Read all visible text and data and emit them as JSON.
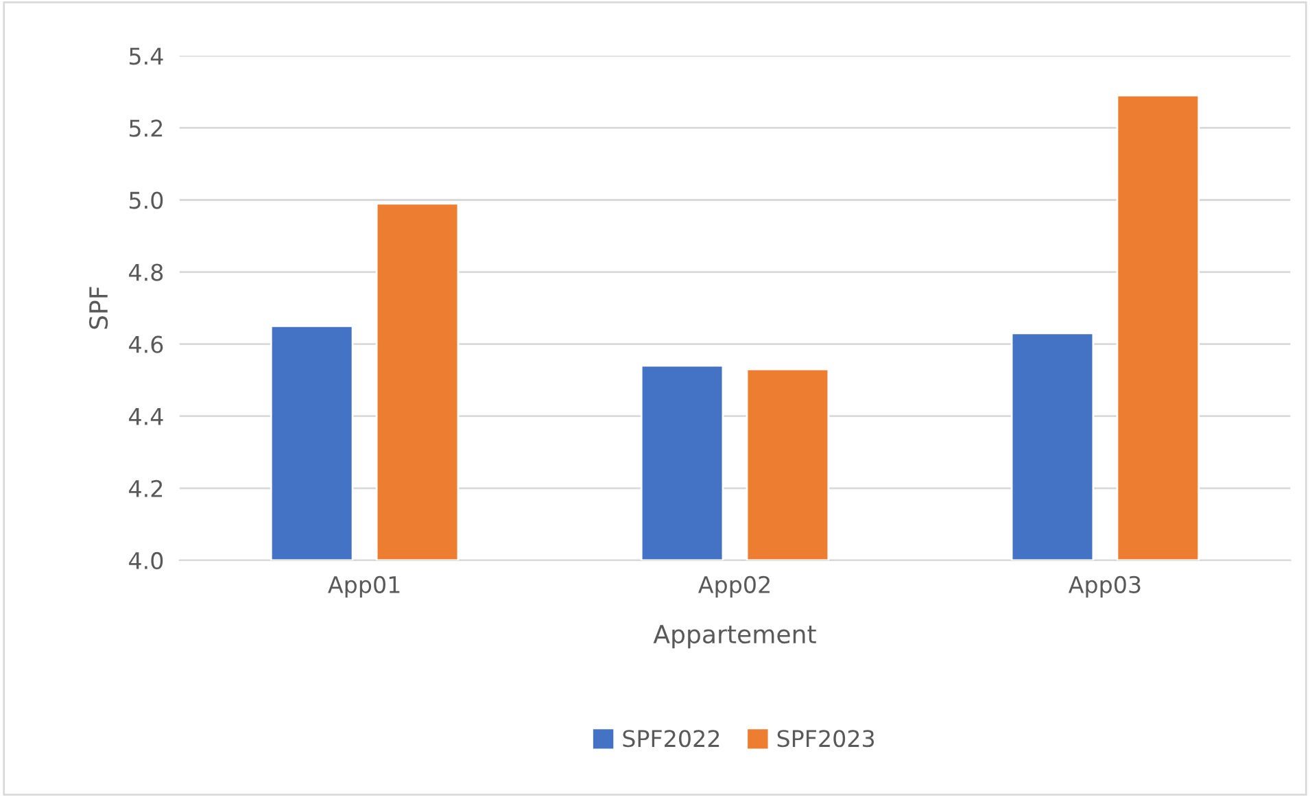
{
  "chart_data": {
    "type": "bar",
    "xlabel": "Appartement",
    "ylabel": "SPF",
    "categories": [
      "App01",
      "App02",
      "App03"
    ],
    "series": [
      {
        "name": "SPF2022",
        "color": "#4472c4",
        "values": [
          4.65,
          4.54,
          4.63
        ]
      },
      {
        "name": "SPF2023",
        "color": "#ed7d31",
        "values": [
          4.99,
          4.53,
          5.29
        ]
      }
    ],
    "ylim": [
      4.0,
      5.4
    ],
    "yticks": [
      {
        "value": 4.0,
        "label": "4.0"
      },
      {
        "value": 4.2,
        "label": "4.2"
      },
      {
        "value": 4.4,
        "label": "4.4"
      },
      {
        "value": 4.6,
        "label": "4.6"
      },
      {
        "value": 4.8,
        "label": "4.8"
      },
      {
        "value": 5.0,
        "label": "5.0"
      },
      {
        "value": 5.2,
        "label": "5.2"
      },
      {
        "value": 5.4,
        "label": "5.4"
      }
    ],
    "grid": "y",
    "legend": "bottom"
  }
}
